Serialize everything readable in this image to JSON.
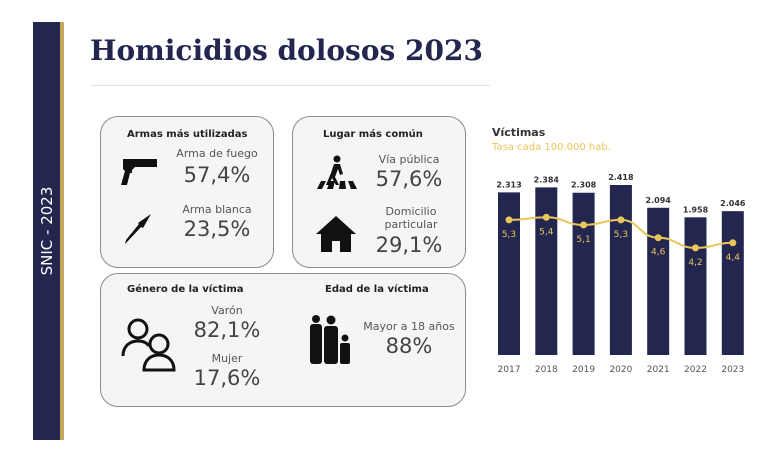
{
  "side_label": "SNIC - 2023",
  "title": "Homicidios dolosos 2023",
  "armas": {
    "title": "Armas más utilizadas",
    "items": [
      {
        "label": "Arma de fuego",
        "value": "57,4%",
        "icon": "pistol-icon"
      },
      {
        "label": "Arma blanca",
        "value": "23,5%",
        "icon": "knife-icon"
      }
    ]
  },
  "lugar": {
    "title": "Lugar más común",
    "items": [
      {
        "label": "Vía pública",
        "value": "57,6%",
        "icon": "pedestrian-crossing-icon"
      },
      {
        "label": "Domicilio particular",
        "value": "29,1%",
        "icon": "house-icon"
      }
    ]
  },
  "genero": {
    "title": "Género de la víctima",
    "items": [
      {
        "label": "Varón",
        "value": "82,1%"
      },
      {
        "label": "Mujer",
        "value": "17,6%"
      }
    ],
    "icon": "people-icon"
  },
  "edad": {
    "title": "Edad de la víctima",
    "label": "Mayor a 18 años",
    "value": "88%",
    "icon": "family-icon"
  },
  "chart_data": {
    "type": "bar",
    "title": "Víctimas",
    "subtitle": "Tasa cada 100.000 hab.",
    "categories": [
      "2017",
      "2018",
      "2019",
      "2020",
      "2021",
      "2022",
      "2023"
    ],
    "series": [
      {
        "name": "Víctimas",
        "type": "bar",
        "values": [
          2313,
          2384,
          2308,
          2418,
          2094,
          1958,
          2046
        ],
        "labels": [
          "2.313",
          "2.384",
          "2.308",
          "2.418",
          "2.094",
          "1.958",
          "2.046"
        ],
        "color": "#23264f"
      },
      {
        "name": "Tasa cada 100.000 hab.",
        "type": "line",
        "values": [
          5.3,
          5.4,
          5.1,
          5.3,
          4.6,
          4.2,
          4.4
        ],
        "labels": [
          "5,3",
          "5,4",
          "5,1",
          "5,3",
          "4,6",
          "4,2",
          "4,4"
        ],
        "color": "#e8c65a"
      }
    ],
    "grid": false
  }
}
